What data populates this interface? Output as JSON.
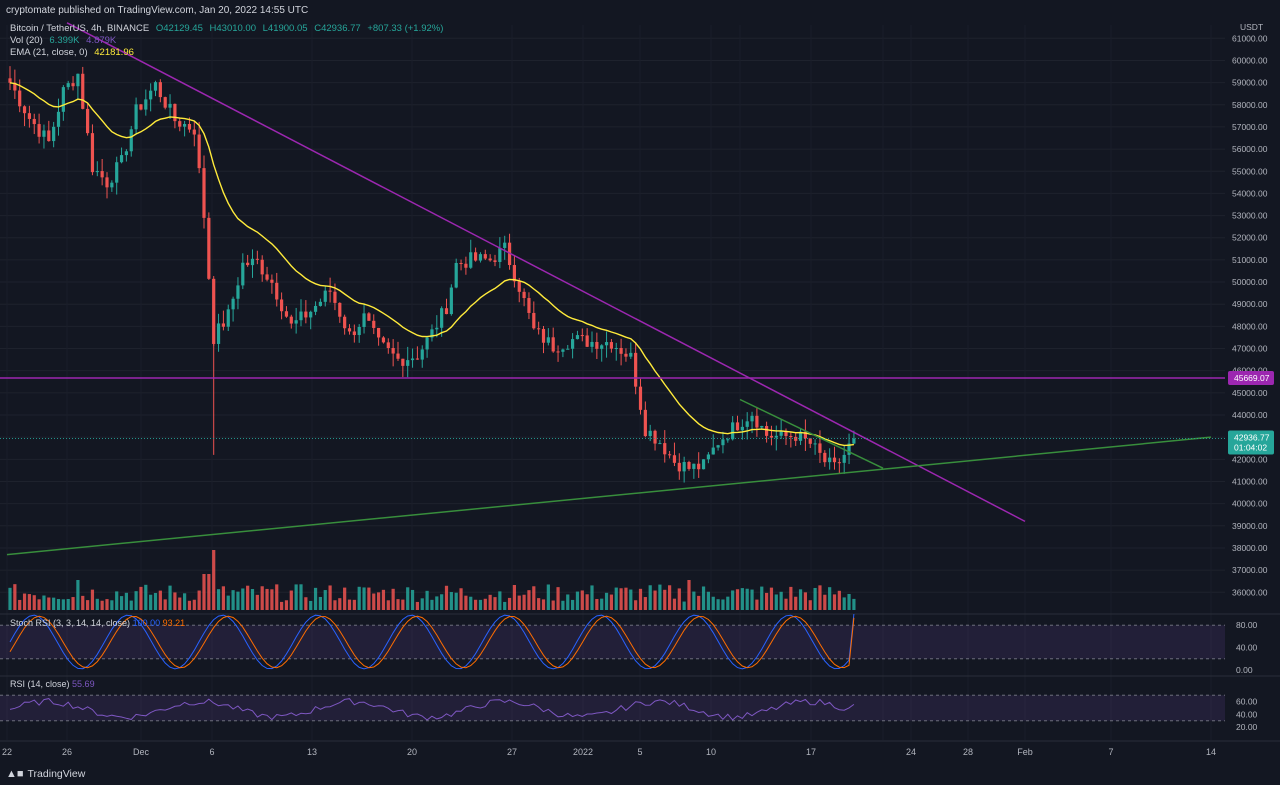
{
  "header": {
    "publisher": "cryptomate published on TradingView.com, Jan 20, 2022 14:55 UTC"
  },
  "legend": {
    "symbol": "Bitcoin / TetherUS, 4h, BINANCE",
    "open": "O42129.45",
    "high": "H43010.00",
    "low": "L41900.05",
    "close": "C42936.77",
    "change": "+807.33 (+1.92%)",
    "vol_label": "Vol (20)",
    "vol_value": "6.399K",
    "vol_ma": "4.879K",
    "ema_label": "EMA (21, close, 0)",
    "ema_value": "42181.96"
  },
  "colors": {
    "background": "#131722",
    "up": "#26a69a",
    "down": "#ef5350",
    "ema": "#ffeb3b",
    "trendline_purple": "#9c27b0",
    "trendline_green": "#388e3c",
    "stoch_k": "#2962ff",
    "stoch_d": "#ff6d00",
    "rsi": "#7e57c2"
  },
  "chart_data": {
    "type": "candlestick",
    "title": "Bitcoin / TetherUS, 4h, BINANCE",
    "currency": "USDT",
    "y_ticks": [
      61000,
      60000,
      59000,
      58000,
      57000,
      56000,
      55000,
      54000,
      53000,
      52000,
      51000,
      50000,
      49000,
      48000,
      47000,
      46000,
      45000,
      44000,
      43000,
      42000,
      41000,
      40000,
      39000,
      38000,
      37000,
      36000
    ],
    "ylim": [
      35200,
      61600
    ],
    "x_ticks": [
      "22",
      "26",
      "Dec",
      "6",
      "13",
      "20",
      "27",
      "2022",
      "5",
      "10",
      "17",
      "24",
      "28",
      "Feb",
      "7",
      "14"
    ],
    "price_path": [
      [
        0,
        59000
      ],
      [
        4,
        57400
      ],
      [
        8,
        56300
      ],
      [
        11,
        58600
      ],
      [
        14,
        59400
      ],
      [
        17,
        55200
      ],
      [
        20,
        54500
      ],
      [
        23,
        55400
      ],
      [
        26,
        57700
      ],
      [
        30,
        58900
      ],
      [
        34,
        57300
      ],
      [
        38,
        56900
      ],
      [
        40,
        53000
      ],
      [
        42,
        47500
      ],
      [
        45,
        48500
      ],
      [
        48,
        50800
      ],
      [
        51,
        50900
      ],
      [
        54,
        50000
      ],
      [
        58,
        48000
      ],
      [
        62,
        48700
      ],
      [
        66,
        49600
      ],
      [
        70,
        47600
      ],
      [
        73,
        48400
      ],
      [
        76,
        47200
      ],
      [
        80,
        46500
      ],
      [
        84,
        46700
      ],
      [
        87,
        47700
      ],
      [
        90,
        48900
      ],
      [
        92,
        50800
      ],
      [
        95,
        51000
      ],
      [
        99,
        51000
      ],
      [
        102,
        51500
      ],
      [
        105,
        49800
      ],
      [
        108,
        47800
      ],
      [
        112,
        47100
      ],
      [
        116,
        47400
      ],
      [
        120,
        47300
      ],
      [
        124,
        47300
      ],
      [
        128,
        46600
      ],
      [
        131,
        43400
      ],
      [
        134,
        42800
      ],
      [
        137,
        41900
      ],
      [
        140,
        41600
      ],
      [
        143,
        41700
      ],
      [
        146,
        42800
      ],
      [
        150,
        43600
      ],
      [
        153,
        44100
      ],
      [
        156,
        43100
      ],
      [
        159,
        43000
      ],
      [
        162,
        43100
      ],
      [
        165,
        42700
      ],
      [
        168,
        41900
      ],
      [
        170,
        41600
      ],
      [
        172,
        42200
      ],
      [
        174,
        42937
      ]
    ],
    "last_price": 42936.77,
    "last_price_label": "42936.77",
    "countdown": "01:04:02",
    "horizontal_level": 45669.07,
    "horizontal_level_label": "45669.07",
    "trendlines": [
      {
        "name": "descending-resistance",
        "color": "#9c27b0",
        "from": [
          "Nov 26",
          61700
        ],
        "to": [
          "Feb 1",
          39200
        ]
      },
      {
        "name": "ascending-support",
        "color": "#388e3c",
        "from": [
          "Nov 22",
          37700
        ],
        "to": [
          "Feb 14",
          43000
        ]
      },
      {
        "name": "short-resistance",
        "color": "#388e3c",
        "from": [
          "Jan 12",
          44700
        ],
        "to": [
          "Jan 22",
          41600
        ]
      }
    ],
    "volume": {
      "label": "Vol (20)",
      "last": "6.399K",
      "ma": "4.879K"
    },
    "stoch_rsi": {
      "label": "Stoch RSI (3, 3, 14, 14, close)",
      "k": "100.00",
      "d": "93.21",
      "levels": [
        80,
        20
      ],
      "axis": [
        "80.00",
        "40.00",
        "0.00"
      ]
    },
    "rsi": {
      "label": "RSI (14, close)",
      "value": "55.69",
      "levels": [
        70,
        30
      ],
      "axis": [
        "60.00",
        "40.00",
        "20.00"
      ]
    }
  },
  "footer": {
    "brand": "TradingView"
  }
}
